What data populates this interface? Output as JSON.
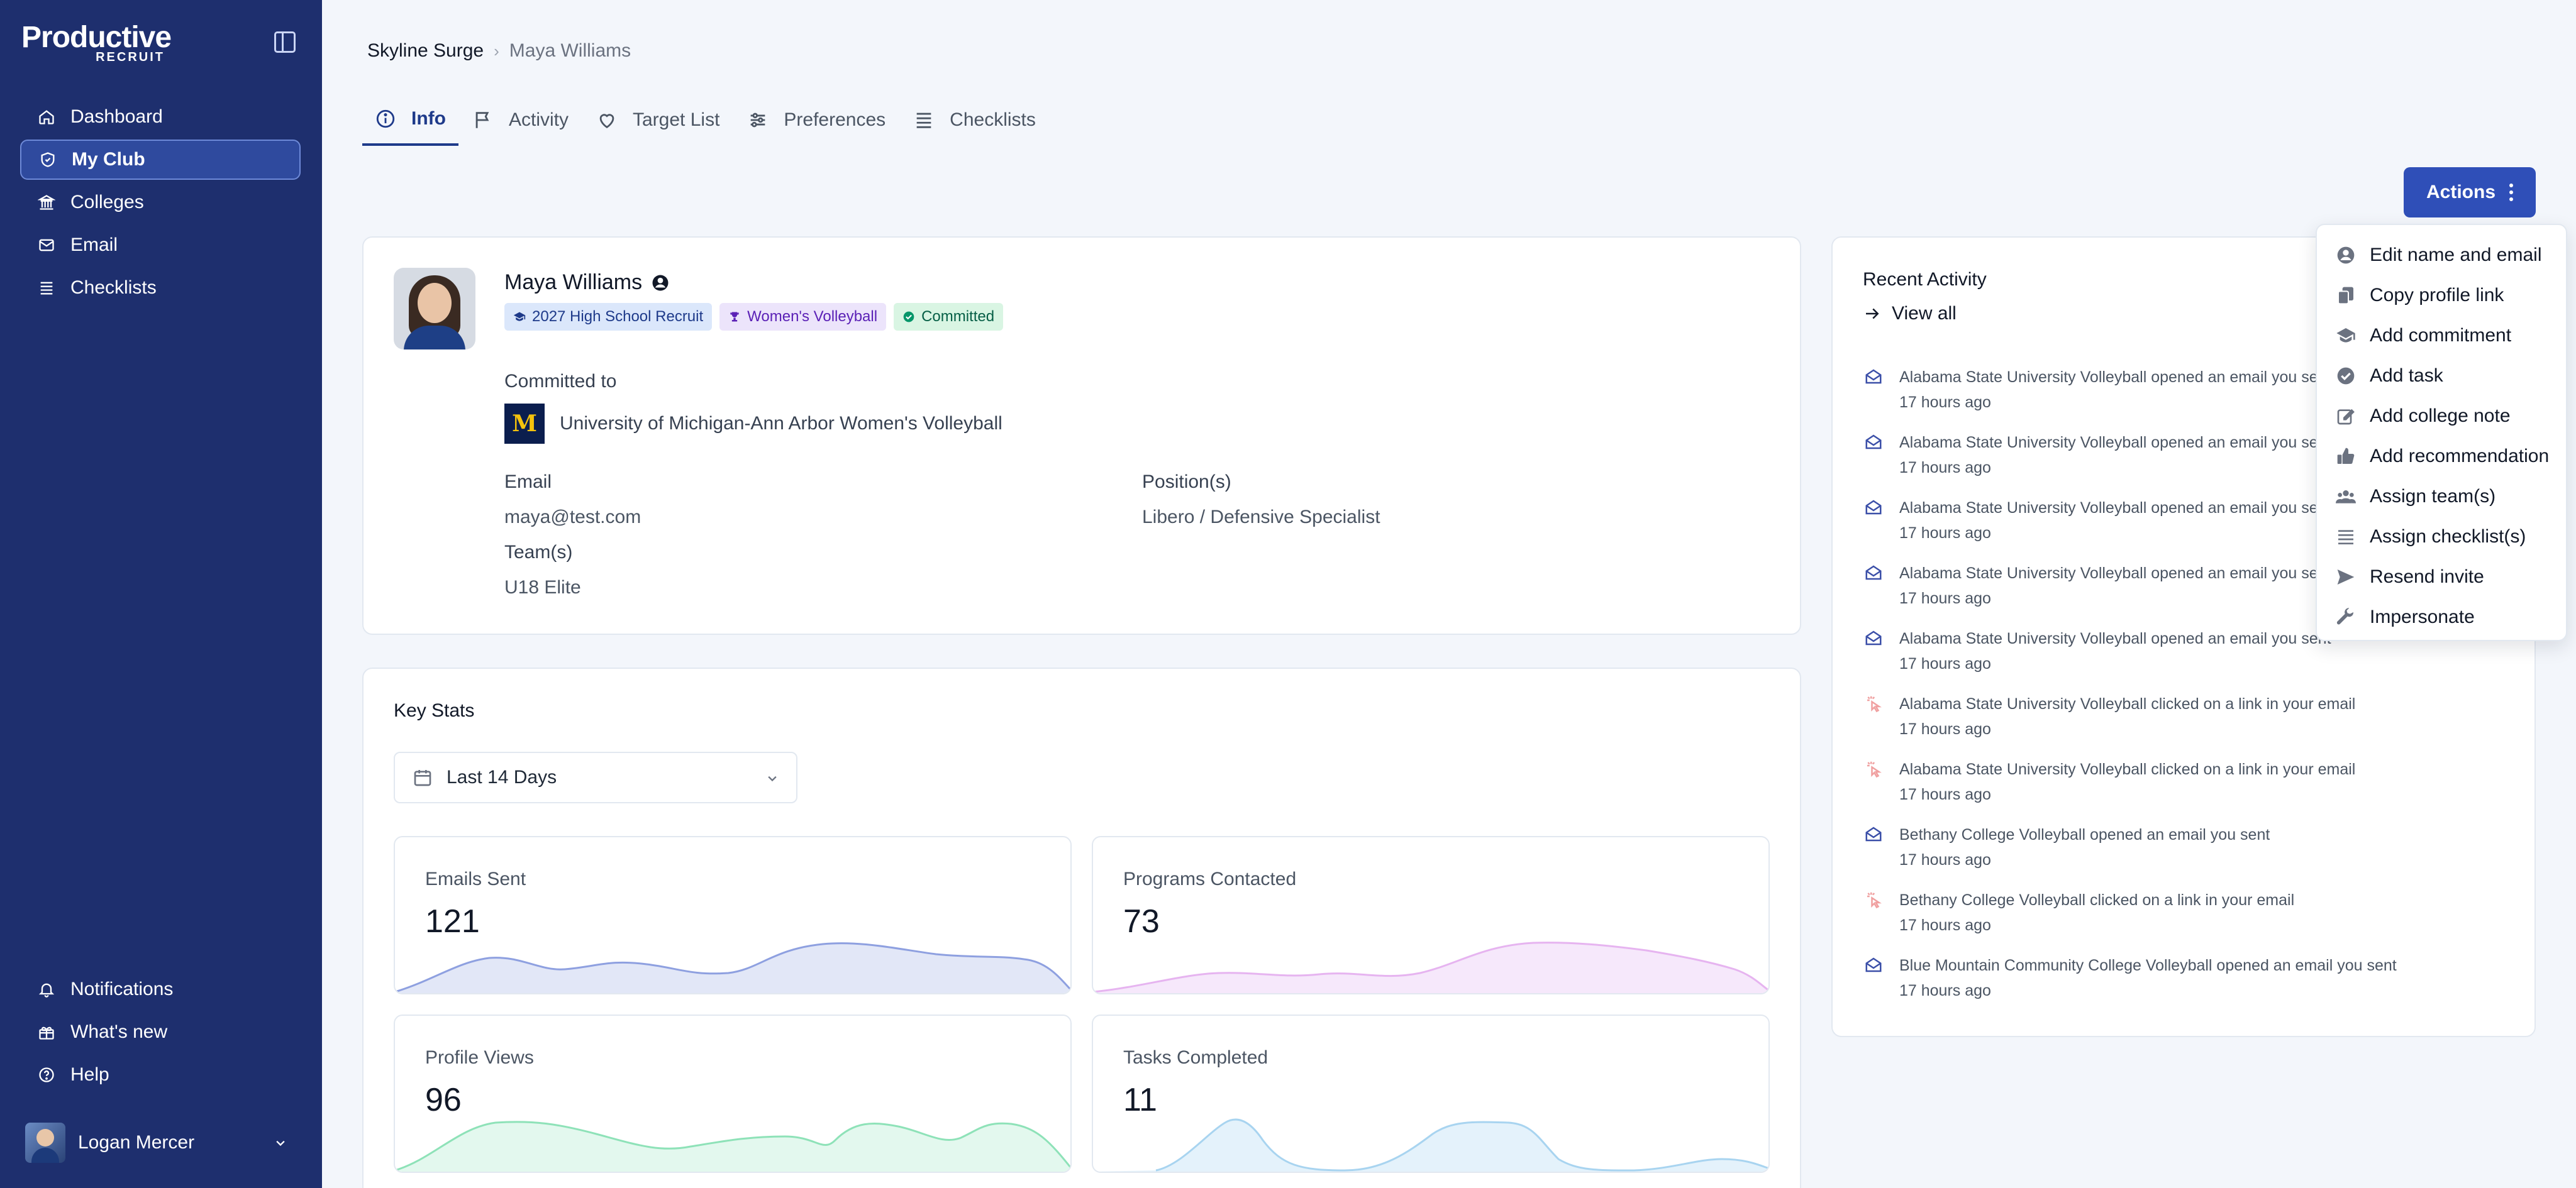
{
  "brand": {
    "logo_main": "Productive",
    "logo_sub": "RECRUIT"
  },
  "sidebar": {
    "items": [
      {
        "label": "Dashboard",
        "icon": "home-icon"
      },
      {
        "label": "My Club",
        "icon": "shield-icon",
        "active": true
      },
      {
        "label": "Colleges",
        "icon": "building-icon"
      },
      {
        "label": "Email",
        "icon": "mail-icon"
      },
      {
        "label": "Checklists",
        "icon": "list-icon"
      }
    ],
    "bottom_items": [
      {
        "label": "Notifications",
        "icon": "bell-icon"
      },
      {
        "label": "What's new",
        "icon": "gift-icon"
      },
      {
        "label": "Help",
        "icon": "help-icon"
      }
    ],
    "user": {
      "name": "Logan Mercer"
    }
  },
  "breadcrumb": {
    "root": "Skyline Surge",
    "separator": "›",
    "current": "Maya Williams"
  },
  "tabs": [
    {
      "label": "Info",
      "icon": "info-icon",
      "active": true
    },
    {
      "label": "Activity",
      "icon": "flag-icon"
    },
    {
      "label": "Target List",
      "icon": "heart-icon"
    },
    {
      "label": "Preferences",
      "icon": "sliders-icon"
    },
    {
      "label": "Checklists",
      "icon": "list-icon"
    }
  ],
  "actions": {
    "label": "Actions",
    "menu": [
      {
        "label": "Edit name and email",
        "icon": "user-circle-icon"
      },
      {
        "label": "Copy profile link",
        "icon": "copy-icon"
      },
      {
        "label": "Add commitment",
        "icon": "graduation-cap-icon"
      },
      {
        "label": "Add task",
        "icon": "check-circle-icon"
      },
      {
        "label": "Add college note",
        "icon": "edit-icon"
      },
      {
        "label": "Add recommendation",
        "icon": "thumbs-up-icon"
      },
      {
        "label": "Assign team(s)",
        "icon": "users-icon"
      },
      {
        "label": "Assign checklist(s)",
        "icon": "list-icon"
      },
      {
        "label": "Resend invite",
        "icon": "send-icon"
      },
      {
        "label": "Impersonate",
        "icon": "wrench-icon"
      }
    ]
  },
  "profile": {
    "name": "Maya Williams",
    "badges": [
      {
        "label": "2027 High School Recruit",
        "icon": "graduation-cap-icon",
        "color": "#dbe7fb"
      },
      {
        "label": "Women's Volleyball",
        "icon": "trophy-icon",
        "color": "#ece4fb"
      },
      {
        "label": "Committed",
        "icon": "check-circle-icon",
        "color": "#d9f5e3"
      }
    ],
    "committed_label": "Committed to",
    "college_logo_letter": "M",
    "college": "University of Michigan-Ann Arbor Women's Volleyball",
    "email_label": "Email",
    "email": "maya@test.com",
    "teams_label": "Team(s)",
    "teams": "U18 Elite",
    "positions_label": "Position(s)",
    "positions": "Libero / Defensive Specialist"
  },
  "stats": {
    "title": "Key Stats",
    "date_range": "Last 14 Days",
    "cards": [
      {
        "label": "Emails Sent",
        "value": "121",
        "color": "#8ea0e0",
        "fill": "#e2e7f7"
      },
      {
        "label": "Programs Contacted",
        "value": "73",
        "color": "#e6b4f0",
        "fill": "#f6e8fb"
      },
      {
        "label": "Profile Views",
        "value": "96",
        "color": "#8ee2b8",
        "fill": "#e3f8ee"
      },
      {
        "label": "Tasks Completed",
        "value": "11",
        "color": "#a8d4f0",
        "fill": "#e4f2fb"
      }
    ]
  },
  "activity": {
    "title": "Recent Activity",
    "view_all": "View all",
    "items": [
      {
        "text": "Alabama State University Volleyball opened an email you sent",
        "time": "17 hours ago",
        "type": "open"
      },
      {
        "text": "Alabama State University Volleyball opened an email you sent",
        "time": "17 hours ago",
        "type": "open"
      },
      {
        "text": "Alabama State University Volleyball opened an email you sent",
        "time": "17 hours ago",
        "type": "open"
      },
      {
        "text": "Alabama State University Volleyball opened an email you sent",
        "time": "17 hours ago",
        "type": "open"
      },
      {
        "text": "Alabama State University Volleyball opened an email you sent",
        "time": "17 hours ago",
        "type": "open"
      },
      {
        "text": "Alabama State University Volleyball clicked on a link in your email",
        "time": "17 hours ago",
        "type": "click"
      },
      {
        "text": "Alabama State University Volleyball clicked on a link in your email",
        "time": "17 hours ago",
        "type": "click"
      },
      {
        "text": "Bethany College Volleyball opened an email you sent",
        "time": "17 hours ago",
        "type": "open"
      },
      {
        "text": "Bethany College Volleyball clicked on a link in your email",
        "time": "17 hours ago",
        "type": "click"
      },
      {
        "text": "Blue Mountain Community College Volleyball opened an email you sent",
        "time": "17 hours ago",
        "type": "open"
      }
    ]
  },
  "colors": {
    "sidebar": "#1e2f6e",
    "accent": "#2f4fb8",
    "background": "#f3f6fb"
  }
}
